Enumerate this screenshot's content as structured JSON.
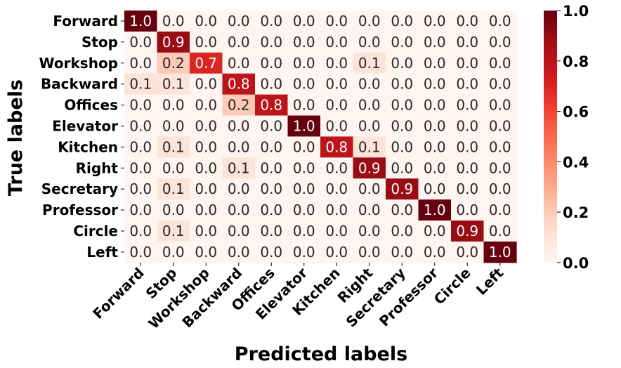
{
  "chart_data": {
    "type": "heatmap",
    "title": "",
    "xlabel": "Predicted labels",
    "ylabel": "True labels",
    "row_labels": [
      "Forward",
      "Stop",
      "Workshop",
      "Backward",
      "Offices",
      "Elevator",
      "Kitchen",
      "Right",
      "Secretary",
      "Professor",
      "Circle",
      "Left"
    ],
    "col_labels": [
      "Forward",
      "Stop",
      "Workshop",
      "Backward",
      "Offices",
      "Elevator",
      "Kitchen",
      "Right",
      "Secretary",
      "Professor",
      "Circle",
      "Left"
    ],
    "values": [
      [
        1.0,
        0.0,
        0.0,
        0.0,
        0.0,
        0.0,
        0.0,
        0.0,
        0.0,
        0.0,
        0.0,
        0.0
      ],
      [
        0.0,
        0.9,
        0.0,
        0.0,
        0.0,
        0.0,
        0.0,
        0.0,
        0.0,
        0.0,
        0.0,
        0.0
      ],
      [
        0.0,
        0.2,
        0.7,
        0.0,
        0.0,
        0.0,
        0.0,
        0.1,
        0.0,
        0.0,
        0.0,
        0.0
      ],
      [
        0.1,
        0.1,
        0.0,
        0.8,
        0.0,
        0.0,
        0.0,
        0.0,
        0.0,
        0.0,
        0.0,
        0.0
      ],
      [
        0.0,
        0.0,
        0.0,
        0.2,
        0.8,
        0.0,
        0.0,
        0.0,
        0.0,
        0.0,
        0.0,
        0.0
      ],
      [
        0.0,
        0.0,
        0.0,
        0.0,
        0.0,
        1.0,
        0.0,
        0.0,
        0.0,
        0.0,
        0.0,
        0.0
      ],
      [
        0.0,
        0.1,
        0.0,
        0.0,
        0.0,
        0.0,
        0.8,
        0.1,
        0.0,
        0.0,
        0.0,
        0.0
      ],
      [
        0.0,
        0.0,
        0.0,
        0.1,
        0.0,
        0.0,
        0.0,
        0.9,
        0.0,
        0.0,
        0.0,
        0.0
      ],
      [
        0.0,
        0.1,
        0.0,
        0.0,
        0.0,
        0.0,
        0.0,
        0.0,
        0.9,
        0.0,
        0.0,
        0.0
      ],
      [
        0.0,
        0.0,
        0.0,
        0.0,
        0.0,
        0.0,
        0.0,
        0.0,
        0.0,
        1.0,
        0.0,
        0.0
      ],
      [
        0.0,
        0.1,
        0.0,
        0.0,
        0.0,
        0.0,
        0.0,
        0.0,
        0.0,
        0.0,
        0.9,
        0.0
      ],
      [
        0.0,
        0.0,
        0.0,
        0.0,
        0.0,
        0.0,
        0.0,
        0.0,
        0.0,
        0.0,
        0.0,
        1.0
      ]
    ],
    "cell_labels": [
      [
        "1.0",
        "0.0",
        "0.0",
        "0.0",
        "0.0",
        "0.0",
        "0.0",
        "0.0",
        "0.0",
        "0.0",
        "0.0",
        "0.0"
      ],
      [
        "0.0",
        "0.9",
        "0.0",
        "0.0",
        "0.0",
        "0.0",
        "0.0",
        "0.0",
        "0.0",
        "0.0",
        "0.0",
        "0.0"
      ],
      [
        "0.0",
        "0.2",
        "0.7",
        "0.0",
        "0.0",
        "0.0",
        "0.0",
        "0.1",
        "0.0",
        "0.0",
        "0.0",
        "0.0"
      ],
      [
        "0.1",
        "0.1",
        "0.0",
        "0.8",
        "0.0",
        "0.0",
        "0.0",
        "0.0",
        "0.0",
        "0.0",
        "0.0",
        "0.0"
      ],
      [
        "0.0",
        "0.0",
        "0.0",
        "0.2",
        "0.8",
        "0.0",
        "0.0",
        "0.0",
        "0.0",
        "0.0",
        "0.0",
        "0.0"
      ],
      [
        "0.0",
        "0.0",
        "0.0",
        "0.0",
        "0.0",
        "1.0",
        "0.0",
        "0.0",
        "0.0",
        "0.0",
        "0.0",
        "0.0"
      ],
      [
        "0.0",
        "0.1",
        "0.0",
        "0.0",
        "0.0",
        "0.0",
        "0.8",
        "0.1",
        "0.0",
        "0.0",
        "0.0",
        "0.0"
      ],
      [
        "0.0",
        "0.0",
        "0.0",
        "0.1",
        "0.0",
        "0.0",
        "0.0",
        "0.9",
        "0.0",
        "0.0",
        "0.0",
        "0.0"
      ],
      [
        "0.0",
        "0.1",
        "0.0",
        "0.0",
        "0.0",
        "0.0",
        "0.0",
        "0.0",
        "0.9",
        "0.0",
        "0.0",
        "0.0"
      ],
      [
        "0.0",
        "0.0",
        "0.0",
        "0.0",
        "0.0",
        "0.0",
        "0.0",
        "0.0",
        "0.0",
        "1.0",
        "0.0",
        "0.0"
      ],
      [
        "0.0",
        "0.1",
        "0.0",
        "0.0",
        "0.0",
        "0.0",
        "0.0",
        "0.0",
        "0.0",
        "0.0",
        "0.9",
        "0.0"
      ],
      [
        "0.0",
        "0.0",
        "0.0",
        "0.0",
        "0.0",
        "0.0",
        "0.0",
        "0.0",
        "0.0",
        "0.0",
        "0.0",
        "1.0"
      ]
    ],
    "colorbar": {
      "range": [
        0.0,
        1.0
      ],
      "ticks": [
        0.0,
        0.2,
        0.4,
        0.6,
        0.8,
        1.0
      ],
      "tick_labels": [
        "0.0",
        "0.2",
        "0.4",
        "0.6",
        "0.8",
        "1.0"
      ]
    },
    "colormap": "Reds",
    "colors": {
      "low": "#fff5f0",
      "high": "#67000d",
      "text_dark": "#262626",
      "text_light": "#ffffff"
    },
    "grid": false,
    "legend": "colorbar-right"
  }
}
